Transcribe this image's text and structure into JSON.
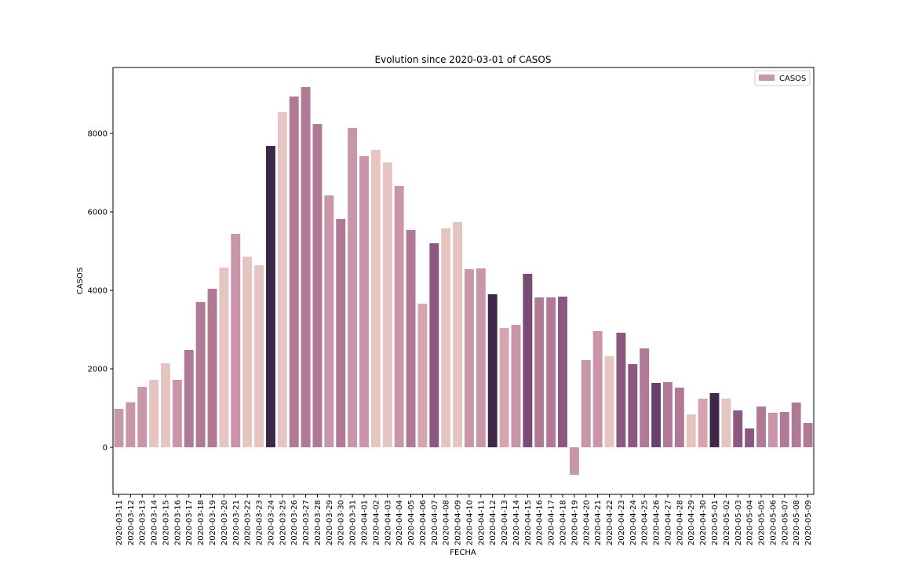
{
  "chart_data": {
    "type": "bar",
    "title": "Evolution  since 2020-03-01 of CASOS",
    "xlabel": "FECHA",
    "ylabel": "CASOS",
    "legend": {
      "label": "CASOS",
      "placement": "top-right",
      "color": "#c896a8"
    },
    "ylim": [
      -1200,
      9680
    ],
    "yticks": [
      0,
      2000,
      4000,
      6000,
      8000
    ],
    "grid": false,
    "categories": [
      "2020-03-11",
      "2020-03-12",
      "2020-03-13",
      "2020-03-14",
      "2020-03-15",
      "2020-03-16",
      "2020-03-17",
      "2020-03-18",
      "2020-03-19",
      "2020-03-20",
      "2020-03-21",
      "2020-03-22",
      "2020-03-23",
      "2020-03-24",
      "2020-03-25",
      "2020-03-26",
      "2020-03-27",
      "2020-03-28",
      "2020-03-29",
      "2020-03-30",
      "2020-03-31",
      "2020-04-01",
      "2020-04-02",
      "2020-04-03",
      "2020-04-04",
      "2020-04-05",
      "2020-04-06",
      "2020-04-07",
      "2020-04-08",
      "2020-04-09",
      "2020-04-10",
      "2020-04-11",
      "2020-04-12",
      "2020-04-13",
      "2020-04-14",
      "2020-04-15",
      "2020-04-16",
      "2020-04-17",
      "2020-04-18",
      "2020-04-19",
      "2020-04-20",
      "2020-04-21",
      "2020-04-22",
      "2020-04-23",
      "2020-04-24",
      "2020-04-25",
      "2020-04-26",
      "2020-04-27",
      "2020-04-28",
      "2020-04-29",
      "2020-04-30",
      "2020-05-01",
      "2020-05-02",
      "2020-05-03",
      "2020-05-04",
      "2020-05-05",
      "2020-05-06",
      "2020-05-07",
      "2020-05-08",
      "2020-05-09"
    ],
    "values": [
      980,
      1150,
      1540,
      1720,
      2140,
      1720,
      2480,
      3700,
      4040,
      4580,
      5440,
      4860,
      4640,
      7680,
      8540,
      8940,
      9180,
      8240,
      6420,
      5820,
      8140,
      7420,
      7580,
      7260,
      6660,
      5540,
      3660,
      5200,
      5580,
      5740,
      4540,
      4560,
      3900,
      3040,
      3120,
      4420,
      3820,
      3820,
      3840,
      -700,
      2220,
      2960,
      2320,
      2920,
      2120,
      2520,
      1640,
      1660,
      1520,
      840,
      1240,
      1380,
      1240,
      940,
      480,
      1040,
      880,
      900,
      1140,
      620
    ],
    "colors": [
      "#c896a8",
      "#c896a8",
      "#c896a8",
      "#e6c4c2",
      "#e6c4c2",
      "#c896a8",
      "#b07a96",
      "#b07a96",
      "#b07a96",
      "#e6c4c2",
      "#c896a8",
      "#e6c4c2",
      "#e6c4c2",
      "#3e2848",
      "#e6c4c2",
      "#b07a96",
      "#b07a96",
      "#b07a96",
      "#c896a8",
      "#b07a96",
      "#c896a8",
      "#c896a8",
      "#e6c4c2",
      "#e6c4c2",
      "#c896a8",
      "#b07a96",
      "#d6a4b0",
      "#8c5880",
      "#e6c4c2",
      "#e6c4c2",
      "#c896a8",
      "#c896a8",
      "#3e2848",
      "#d6a4b0",
      "#c896a8",
      "#7a4c74",
      "#b07a96",
      "#b07a96",
      "#8c5880",
      "#c896a8",
      "#c896a8",
      "#c896a8",
      "#e6c4c2",
      "#8c5880",
      "#8c5880",
      "#b07a96",
      "#6a4070",
      "#b07a96",
      "#b07a96",
      "#e6c4c2",
      "#d6a4b0",
      "#3e2848",
      "#e6c4c2",
      "#8c5880",
      "#8c5880",
      "#b07a96",
      "#c896a8",
      "#b07a96",
      "#b07a96",
      "#b07a96"
    ]
  }
}
